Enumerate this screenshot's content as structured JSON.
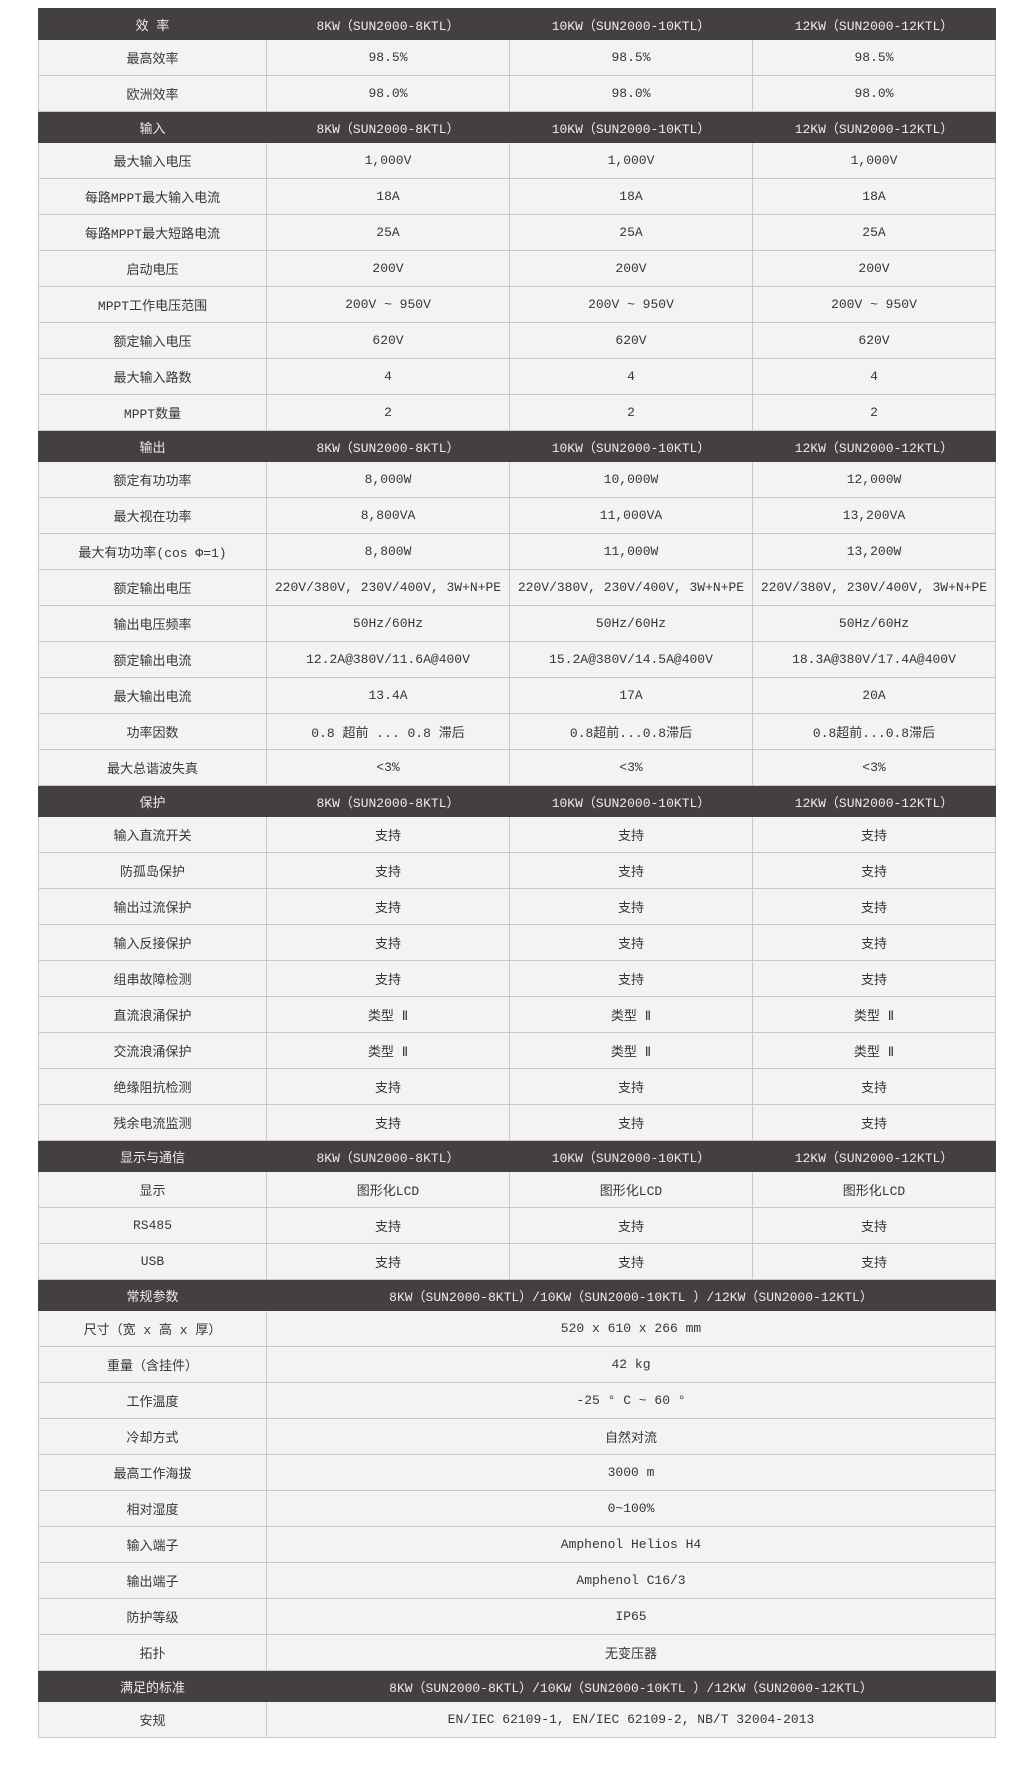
{
  "page": {
    "background": "#ffffff"
  },
  "table": {
    "header_bg": "#454040",
    "header_text_color": "#eeebeb",
    "row_bg": "#f4f3f3",
    "border_color": "#c9c7c7",
    "text_color": "#363636",
    "sections": [
      {
        "title": "效 率",
        "span": false,
        "columns": [
          "8KW（SUN2000-8KTL）",
          "10KW（SUN2000-10KTL）",
          "12KW（SUN2000-12KTL）"
        ],
        "rows": [
          {
            "label": "最高效率",
            "values": [
              "98.5%",
              "98.5%",
              "98.5%"
            ]
          },
          {
            "label": "欧洲效率",
            "values": [
              "98.0%",
              "98.0%",
              "98.0%"
            ]
          }
        ]
      },
      {
        "title": "输入",
        "span": false,
        "columns": [
          "8KW（SUN2000-8KTL）",
          "10KW（SUN2000-10KTL）",
          "12KW（SUN2000-12KTL）"
        ],
        "rows": [
          {
            "label": "最大输入电压",
            "values": [
              "1,000V",
              "1,000V",
              "1,000V"
            ]
          },
          {
            "label": "每路MPPT最大输入电流",
            "values": [
              "18A",
              "18A",
              "18A"
            ]
          },
          {
            "label": "每路MPPT最大短路电流",
            "values": [
              "25A",
              "25A",
              "25A"
            ]
          },
          {
            "label": "启动电压",
            "values": [
              "200V",
              "200V",
              "200V"
            ]
          },
          {
            "label": "MPPT工作电压范围",
            "values": [
              "200V ~ 950V",
              "200V ~ 950V",
              "200V ~ 950V"
            ]
          },
          {
            "label": "额定输入电压",
            "values": [
              "620V",
              "620V",
              "620V"
            ]
          },
          {
            "label": "最大输入路数",
            "values": [
              "4",
              "4",
              "4"
            ]
          },
          {
            "label": "MPPT数量",
            "values": [
              "2",
              "2",
              "2"
            ]
          }
        ]
      },
      {
        "title": "输出",
        "span": false,
        "columns": [
          "8KW（SUN2000-8KTL）",
          "10KW（SUN2000-10KTL）",
          "12KW（SUN2000-12KTL）"
        ],
        "rows": [
          {
            "label": "额定有功功率",
            "values": [
              "8,000W",
              "10,000W",
              "12,000W"
            ]
          },
          {
            "label": "最大视在功率",
            "values": [
              "8,800VA",
              "11,000VA",
              "13,200VA"
            ]
          },
          {
            "label": "最大有功功率(cos Φ=1)",
            "values": [
              "8,800W",
              "11,000W",
              "13,200W"
            ]
          },
          {
            "label": "额定输出电压",
            "values": [
              "220V/380V, 230V/400V, 3W+N+PE",
              "220V/380V, 230V/400V, 3W+N+PE",
              "220V/380V, 230V/400V, 3W+N+PE"
            ]
          },
          {
            "label": "输出电压频率",
            "values": [
              "50Hz/60Hz",
              "50Hz/60Hz",
              "50Hz/60Hz"
            ]
          },
          {
            "label": "额定输出电流",
            "values": [
              "12.2A@380V/11.6A@400V",
              "15.2A@380V/14.5A@400V",
              "18.3A@380V/17.4A@400V"
            ]
          },
          {
            "label": "最大输出电流",
            "values": [
              "13.4A",
              "17A",
              "20A"
            ]
          },
          {
            "label": "功率因数",
            "values": [
              "0.8 超前 ... 0.8 滞后",
              "0.8超前...0.8滞后",
              "0.8超前...0.8滞后"
            ]
          },
          {
            "label": "最大总谐波失真",
            "values": [
              "<3%",
              "<3%",
              "<3%"
            ]
          }
        ]
      },
      {
        "title": "保护",
        "span": false,
        "columns": [
          "8KW（SUN2000-8KTL）",
          "10KW（SUN2000-10KTL）",
          "12KW（SUN2000-12KTL）"
        ],
        "rows": [
          {
            "label": "输入直流开关",
            "values": [
              "支持",
              "支持",
              "支持"
            ]
          },
          {
            "label": "防孤岛保护",
            "values": [
              "支持",
              "支持",
              "支持"
            ]
          },
          {
            "label": "输出过流保护",
            "values": [
              "支持",
              "支持",
              "支持"
            ]
          },
          {
            "label": "输入反接保护",
            "values": [
              "支持",
              "支持",
              "支持"
            ]
          },
          {
            "label": "组串故障检测",
            "values": [
              "支持",
              "支持",
              "支持"
            ]
          },
          {
            "label": "直流浪涌保护",
            "values": [
              "类型 Ⅱ",
              "类型 Ⅱ",
              "类型 Ⅱ"
            ]
          },
          {
            "label": "交流浪涌保护",
            "values": [
              "类型 Ⅱ",
              "类型 Ⅱ",
              "类型 Ⅱ"
            ]
          },
          {
            "label": "绝缘阻抗检测",
            "values": [
              "支持",
              "支持",
              "支持"
            ]
          },
          {
            "label": "残余电流监测",
            "values": [
              "支持",
              "支持",
              "支持"
            ]
          }
        ]
      },
      {
        "title": "显示与通信",
        "span": false,
        "columns": [
          "8KW（SUN2000-8KTL）",
          "10KW（SUN2000-10KTL）",
          "12KW（SUN2000-12KTL）"
        ],
        "rows": [
          {
            "label": "显示",
            "values": [
              "图形化LCD",
              "图形化LCD",
              "图形化LCD"
            ]
          },
          {
            "label": "RS485",
            "values": [
              "支持",
              "支持",
              "支持"
            ]
          },
          {
            "label": "USB",
            "values": [
              "支持",
              "支持",
              "支持"
            ]
          }
        ]
      },
      {
        "title": "常规参数",
        "span": true,
        "columns": [
          "8KW（SUN2000-8KTL）/10KW（SUN2000-10KTL ）/12KW（SUN2000-12KTL）"
        ],
        "rows": [
          {
            "label": "尺寸（宽 x 高 x 厚）",
            "values": [
              "520 x 610 x 266 mm"
            ]
          },
          {
            "label": "重量（含挂件）",
            "values": [
              "42 kg"
            ]
          },
          {
            "label": "工作温度",
            "values": [
              "-25 ° C ~ 60 °"
            ]
          },
          {
            "label": "冷却方式",
            "values": [
              "自然对流"
            ]
          },
          {
            "label": "最高工作海拔",
            "values": [
              "3000 m"
            ]
          },
          {
            "label": "相对湿度",
            "values": [
              "0~100%"
            ]
          },
          {
            "label": "输入端子",
            "values": [
              "Amphenol Helios H4"
            ]
          },
          {
            "label": "输出端子",
            "values": [
              "Amphenol C16/3"
            ]
          },
          {
            "label": "防护等级",
            "values": [
              "IP65"
            ]
          },
          {
            "label": "拓扑",
            "values": [
              "无变压器"
            ]
          }
        ]
      },
      {
        "title": "满足的标准",
        "span": true,
        "columns": [
          "8KW（SUN2000-8KTL）/10KW（SUN2000-10KTL ）/12KW（SUN2000-12KTL）"
        ],
        "rows": [
          {
            "label": "安规",
            "values": [
              "EN/IEC 62109-1, EN/IEC 62109-2, NB/T 32004-2013"
            ]
          }
        ]
      }
    ]
  }
}
